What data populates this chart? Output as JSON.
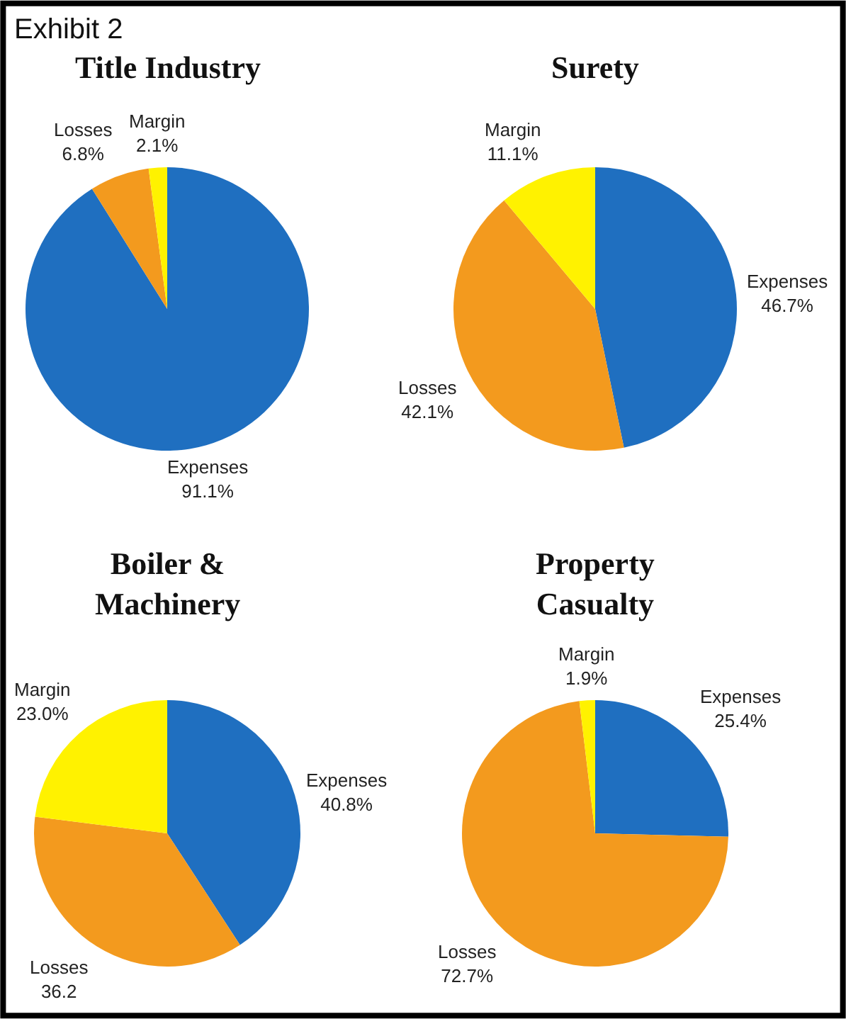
{
  "chart_data": [
    {
      "type": "pie",
      "title": "Title Industry",
      "annotations": [
        "Exhibit 2"
      ],
      "categories": [
        "Expenses",
        "Losses",
        "Margin"
      ],
      "values": [
        91.1,
        6.8,
        2.1
      ],
      "value_labels": [
        "91.1%",
        "6.8%",
        "2.1%"
      ],
      "colors": [
        "#1f6fc0",
        "#f39a1e",
        "#fff200"
      ]
    },
    {
      "type": "pie",
      "title": "Surety",
      "categories": [
        "Expenses",
        "Losses",
        "Margin"
      ],
      "values": [
        46.7,
        42.1,
        11.1
      ],
      "value_labels": [
        "46.7%",
        "42.1%",
        "11.1%"
      ],
      "colors": [
        "#1f6fc0",
        "#f39a1e",
        "#fff200"
      ]
    },
    {
      "type": "pie",
      "title": "Boiler &\nMachinery",
      "categories": [
        "Expenses",
        "Losses",
        "Margin"
      ],
      "values": [
        40.8,
        36.2,
        23.0
      ],
      "value_labels": [
        "40.8%",
        "36.2",
        "23.0%"
      ],
      "colors": [
        "#1f6fc0",
        "#f39a1e",
        "#fff200"
      ]
    },
    {
      "type": "pie",
      "title": "Property\nCasualty",
      "categories": [
        "Expenses",
        "Losses",
        "Margin"
      ],
      "values": [
        25.4,
        72.7,
        1.9
      ],
      "value_labels": [
        "25.4%",
        "72.7%",
        "1.9%"
      ],
      "colors": [
        "#1f6fc0",
        "#f39a1e",
        "#fff200"
      ]
    }
  ]
}
